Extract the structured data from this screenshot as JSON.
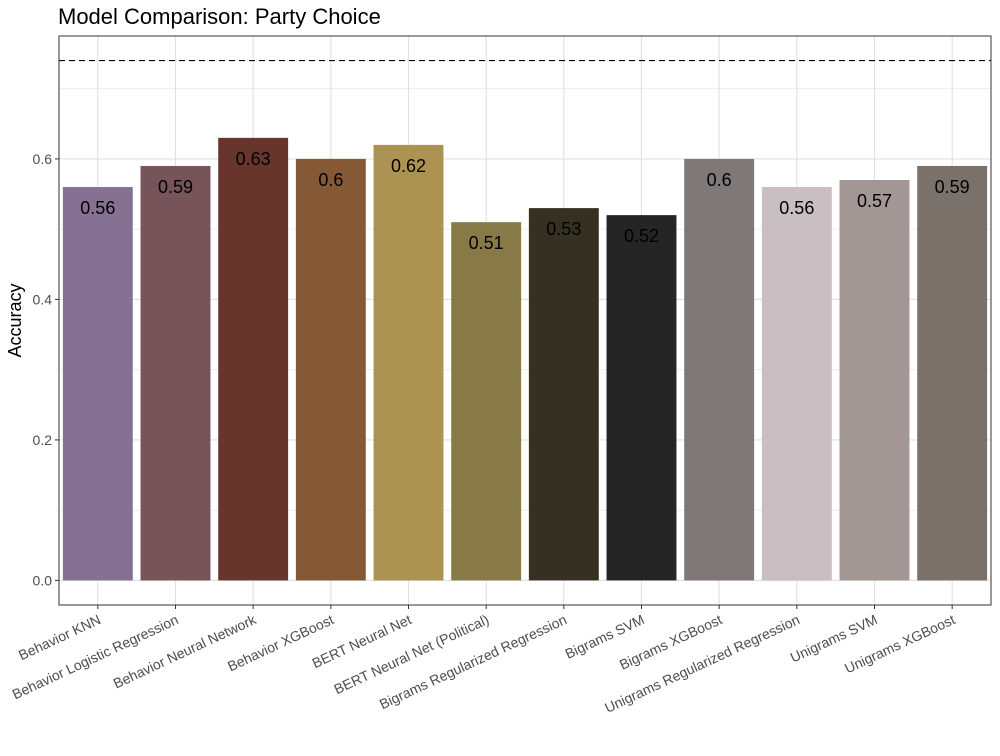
{
  "chart_data": {
    "type": "bar",
    "title": "Model Comparison: Party Choice",
    "xlabel": "",
    "ylabel": "Accuracy",
    "ylim": [
      -0.035,
      0.775
    ],
    "yticks": [
      "0.0",
      "0.2",
      "0.4",
      "0.6"
    ],
    "reference_line": {
      "y": 0.74,
      "style": "dashed"
    },
    "grid": true,
    "legend": "none",
    "categories": [
      "Behavior KNN",
      "Behavior Logistic Regression",
      "Behavior Neural Network",
      "Behavior XGBoost",
      "BERT Neural Net",
      "BERT Neural Net (Political)",
      "Bigrams Regularized Regression",
      "Bigrams SVM",
      "Bigrams XGBoost",
      "Unigrams Regularized Regression",
      "Unigrams SVM",
      "Unigrams XGBoost"
    ],
    "values": [
      0.56,
      0.59,
      0.63,
      0.6,
      0.62,
      0.51,
      0.53,
      0.52,
      0.6,
      0.56,
      0.57,
      0.59
    ],
    "labels": [
      "0.56",
      "0.59",
      "0.63",
      "0.6",
      "0.62",
      "0.51",
      "0.53",
      "0.52",
      "0.6",
      "0.56",
      "0.57",
      "0.59"
    ],
    "colors": [
      "#877193",
      "#77535a",
      "#67352c",
      "#855935",
      "#ad9352",
      "#877a46",
      "#353021",
      "#262525",
      "#7f7878",
      "#c9bfc3",
      "#a29794",
      "#7a716b"
    ]
  }
}
